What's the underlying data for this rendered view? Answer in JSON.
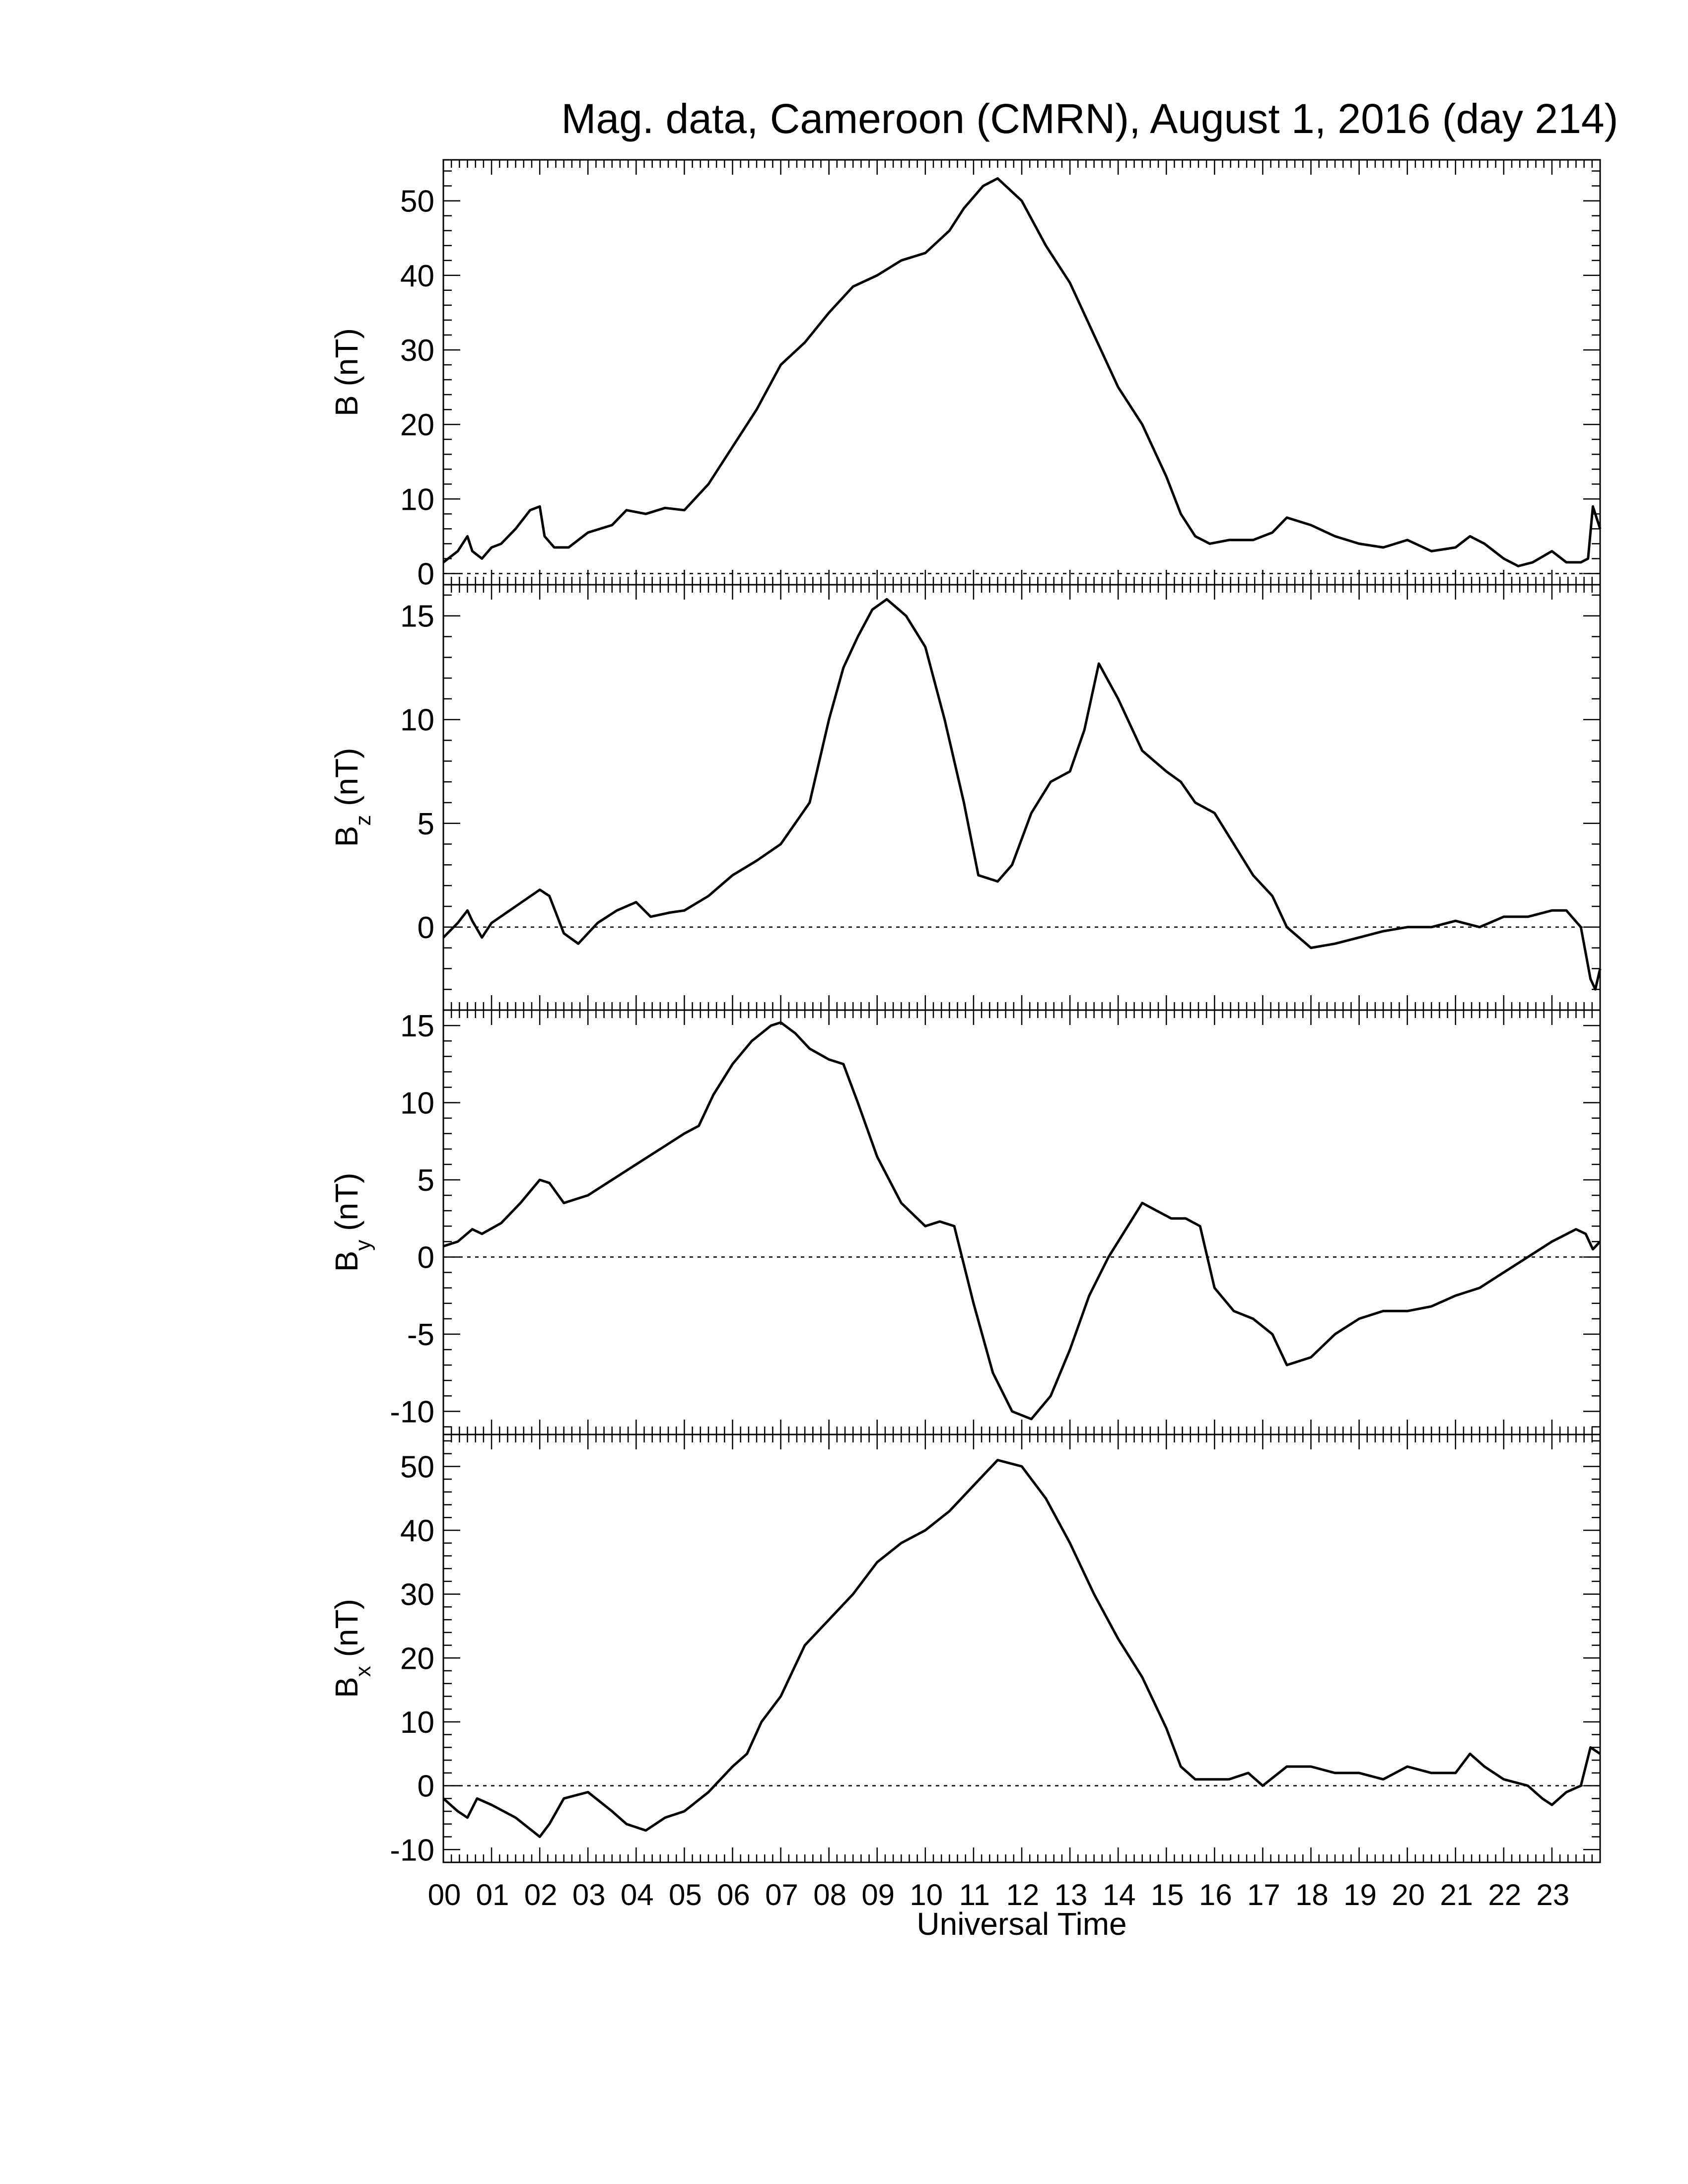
{
  "figure": {
    "title": "Mag. data, Cameroon (CMRN), August 1, 2016 (day 214)",
    "xlabel": "Universal Time",
    "x_tick_labels": [
      "00",
      "01",
      "02",
      "03",
      "04",
      "05",
      "06",
      "07",
      "08",
      "09",
      "10",
      "11",
      "12",
      "13",
      "14",
      "15",
      "16",
      "17",
      "18",
      "19",
      "20",
      "21",
      "22",
      "23"
    ]
  },
  "chart_data": [
    {
      "type": "line",
      "panel": "B",
      "ylabel_main": "B",
      "ylabel_sub": "",
      "ylabel_unit": "(nT)",
      "xlim": [
        0,
        24
      ],
      "ylim": [
        -1.5,
        55.5
      ],
      "yticks": [
        0,
        10,
        20,
        30,
        40,
        50
      ],
      "zero_line": true,
      "series": [
        {
          "x": [
            0,
            0.3,
            0.5,
            0.6,
            0.8,
            1.0,
            1.2,
            1.5,
            1.8,
            2.0,
            2.1,
            2.3,
            2.6,
            3.0,
            3.5,
            3.8,
            4.2,
            4.6,
            5.0,
            5.5,
            6.0,
            6.5,
            7.0,
            7.5,
            8.0,
            8.5,
            9.0,
            9.5,
            10.0,
            10.5,
            10.8,
            11.2,
            11.5,
            12.0,
            12.5,
            13.0,
            13.5,
            14.0,
            14.5,
            15.0,
            15.3,
            15.6,
            15.9,
            16.3,
            16.8,
            17.2,
            17.5,
            18.0,
            18.5,
            19.0,
            19.5,
            20.0,
            20.5,
            21.0,
            21.3,
            21.6,
            22.0,
            22.3,
            22.6,
            23.0,
            23.3,
            23.6,
            23.75,
            23.85,
            24.0
          ],
          "y": [
            1.5,
            3,
            5,
            3,
            2,
            3.5,
            4,
            6,
            8.5,
            9,
            5,
            3.5,
            3.5,
            5.5,
            6.5,
            8.5,
            8.0,
            8.8,
            8.5,
            12,
            17,
            22,
            28,
            31,
            35,
            38.5,
            40,
            42,
            43,
            46,
            49,
            52,
            53,
            50,
            44,
            39,
            32,
            25,
            20,
            13,
            8,
            5,
            4,
            4.5,
            4.5,
            5.5,
            7.5,
            6.5,
            5,
            4,
            3.5,
            4.5,
            3,
            3.5,
            5,
            4,
            2,
            1,
            1.5,
            3,
            1.5,
            1.5,
            2,
            9,
            6
          ]
        }
      ]
    },
    {
      "type": "line",
      "panel": "Bz",
      "ylabel_main": "B",
      "ylabel_sub": "z",
      "ylabel_unit": "(nT)",
      "xlim": [
        0,
        24
      ],
      "ylim": [
        -4,
        16.5
      ],
      "yticks": [
        0,
        5,
        10,
        15
      ],
      "zero_line": true,
      "series": [
        {
          "x": [
            0,
            0.3,
            0.5,
            0.6,
            0.8,
            1.0,
            1.5,
            2.0,
            2.2,
            2.5,
            2.8,
            3.2,
            3.6,
            4.0,
            4.3,
            4.7,
            5.0,
            5.5,
            6.0,
            6.5,
            7.0,
            7.3,
            7.6,
            8.0,
            8.3,
            8.6,
            8.9,
            9.2,
            9.6,
            10.0,
            10.4,
            10.8,
            11.1,
            11.5,
            11.8,
            12.2,
            12.6,
            13.0,
            13.3,
            13.6,
            14.0,
            14.5,
            15.0,
            15.3,
            15.6,
            16.0,
            16.4,
            16.8,
            17.2,
            17.5,
            18.0,
            18.5,
            19.0,
            19.5,
            20.0,
            20.5,
            21.0,
            21.5,
            22.0,
            22.5,
            23.0,
            23.3,
            23.6,
            23.8,
            23.9,
            24.0
          ],
          "y": [
            -0.5,
            0.2,
            0.8,
            0.3,
            -0.5,
            0.2,
            1.0,
            1.8,
            1.5,
            -0.3,
            -0.8,
            0.2,
            0.8,
            1.2,
            0.5,
            0.7,
            0.8,
            1.5,
            2.5,
            3.2,
            4.0,
            5.0,
            6.0,
            10.0,
            12.5,
            14.0,
            15.3,
            15.8,
            15.0,
            13.5,
            10.0,
            6.0,
            2.5,
            2.2,
            3.0,
            5.5,
            7.0,
            7.5,
            9.5,
            12.7,
            11.0,
            8.5,
            7.5,
            7.0,
            6.0,
            5.5,
            4.0,
            2.5,
            1.5,
            0.0,
            -1.0,
            -0.8,
            -0.5,
            -0.2,
            0.0,
            0.0,
            0.3,
            0.0,
            0.5,
            0.5,
            0.8,
            0.8,
            0.0,
            -2.5,
            -3.0,
            -2.0
          ]
        }
      ]
    },
    {
      "type": "line",
      "panel": "By",
      "ylabel_main": "B",
      "ylabel_sub": "y",
      "ylabel_unit": "(nT)",
      "xlim": [
        0,
        24
      ],
      "ylim": [
        -11.5,
        16
      ],
      "yticks": [
        -10,
        -5,
        0,
        5,
        10,
        15
      ],
      "zero_line": true,
      "series": [
        {
          "x": [
            0,
            0.3,
            0.6,
            0.8,
            1.2,
            1.6,
            2.0,
            2.2,
            2.5,
            3.0,
            3.5,
            4.0,
            4.5,
            5.0,
            5.3,
            5.6,
            6.0,
            6.4,
            6.8,
            7.0,
            7.3,
            7.6,
            8.0,
            8.3,
            8.6,
            9.0,
            9.5,
            10.0,
            10.3,
            10.6,
            11.0,
            11.4,
            11.8,
            12.2,
            12.6,
            13.0,
            13.4,
            13.8,
            14.2,
            14.5,
            14.8,
            15.1,
            15.4,
            15.7,
            16.0,
            16.4,
            16.8,
            17.2,
            17.5,
            18.0,
            18.5,
            19.0,
            19.5,
            20.0,
            20.5,
            21.0,
            21.5,
            22.0,
            22.5,
            23.0,
            23.5,
            23.7,
            23.85,
            24.0
          ],
          "y": [
            0.7,
            1.0,
            1.8,
            1.5,
            2.2,
            3.5,
            5.0,
            4.8,
            3.5,
            4.0,
            5.0,
            6.0,
            7.0,
            8.0,
            8.5,
            10.5,
            12.5,
            14.0,
            15.0,
            15.2,
            14.5,
            13.5,
            12.8,
            12.5,
            10.0,
            6.5,
            3.5,
            2.0,
            2.3,
            2.0,
            -3.0,
            -7.5,
            -10.0,
            -10.5,
            -9.0,
            -6.0,
            -2.5,
            0.0,
            2.0,
            3.5,
            3.0,
            2.5,
            2.5,
            2.0,
            -2.0,
            -3.5,
            -4.0,
            -5.0,
            -7.0,
            -6.5,
            -5.0,
            -4.0,
            -3.5,
            -3.5,
            -3.2,
            -2.5,
            -2.0,
            -1.0,
            0.0,
            1.0,
            1.8,
            1.5,
            0.5,
            1.0
          ]
        }
      ]
    },
    {
      "type": "line",
      "panel": "Bx",
      "ylabel_main": "B",
      "ylabel_sub": "x",
      "ylabel_unit": "(nT)",
      "xlim": [
        0,
        24
      ],
      "ylim": [
        -12,
        55
      ],
      "yticks": [
        -10,
        0,
        10,
        20,
        30,
        40,
        50
      ],
      "zero_line": true,
      "series": [
        {
          "x": [
            0,
            0.3,
            0.5,
            0.7,
            1.0,
            1.5,
            2.0,
            2.2,
            2.5,
            3.0,
            3.5,
            3.8,
            4.2,
            4.6,
            5.0,
            5.5,
            6.0,
            6.3,
            6.6,
            7.0,
            7.5,
            8.0,
            8.5,
            9.0,
            9.5,
            10.0,
            10.5,
            11.0,
            11.5,
            12.0,
            12.5,
            13.0,
            13.5,
            14.0,
            14.5,
            15.0,
            15.3,
            15.6,
            15.9,
            16.3,
            16.7,
            17.0,
            17.5,
            18.0,
            18.5,
            19.0,
            19.5,
            20.0,
            20.5,
            21.0,
            21.3,
            21.6,
            22.0,
            22.5,
            22.8,
            23.0,
            23.3,
            23.6,
            23.8,
            24.0
          ],
          "y": [
            -2,
            -4,
            -5,
            -2,
            -3,
            -5,
            -8,
            -6,
            -2,
            -1,
            -4,
            -6,
            -7,
            -5,
            -4,
            -1,
            3,
            5,
            10,
            14,
            22,
            26,
            30,
            35,
            38,
            40,
            43,
            47,
            51,
            50,
            45,
            38,
            30,
            23,
            17,
            9,
            3,
            1,
            1,
            1,
            2,
            0,
            3,
            3,
            2,
            2,
            1,
            3,
            2,
            2,
            5,
            3,
            1,
            0,
            -2,
            -3,
            -1,
            0,
            6,
            5
          ]
        }
      ]
    }
  ]
}
